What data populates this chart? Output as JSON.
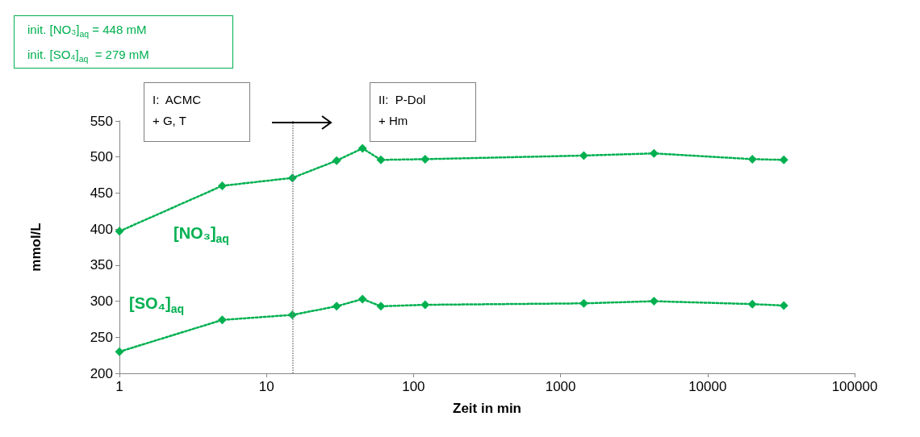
{
  "chart_data": {
    "type": "line",
    "xlabel": "Zeit in min",
    "ylabel": "mmol/L",
    "log": "x",
    "xlim": [
      1,
      100000
    ],
    "xticks": [
      1,
      10,
      100,
      1000,
      10000,
      100000
    ],
    "ylim": [
      200,
      550
    ],
    "yticks": [
      200,
      250,
      300,
      350,
      400,
      450,
      500,
      550
    ],
    "grid": false,
    "marker": "diamond",
    "line_style": "dotted",
    "x": [
      1,
      5,
      15,
      30,
      45,
      60,
      120,
      1440,
      4320,
      20160,
      33000
    ],
    "series": [
      {
        "name": "[NO₃]$_{aq}$",
        "color": "#00b050",
        "values": [
          397,
          460,
          471,
          495,
          512,
          496,
          497,
          502,
          505,
          497,
          496
        ]
      },
      {
        "name": "[SO₄]$_{aq}$",
        "color": "#00b050",
        "values": [
          230,
          274,
          281,
          293,
          303,
          293,
          295,
          297,
          300,
          296,
          294
        ]
      }
    ],
    "ref_lines": [
      {
        "axis": "x",
        "value": 15,
        "color": "#7f7f7f",
        "line_style": "dotted"
      }
    ],
    "annotations": [
      "init. [NO₃]$_{aq}$ = 448 mM\ninit. [SO₄]$_{aq}$  = 279 mM",
      "I:  ACMC\n+ G, T",
      "II:  P-Dol\n+ Hm"
    ]
  }
}
